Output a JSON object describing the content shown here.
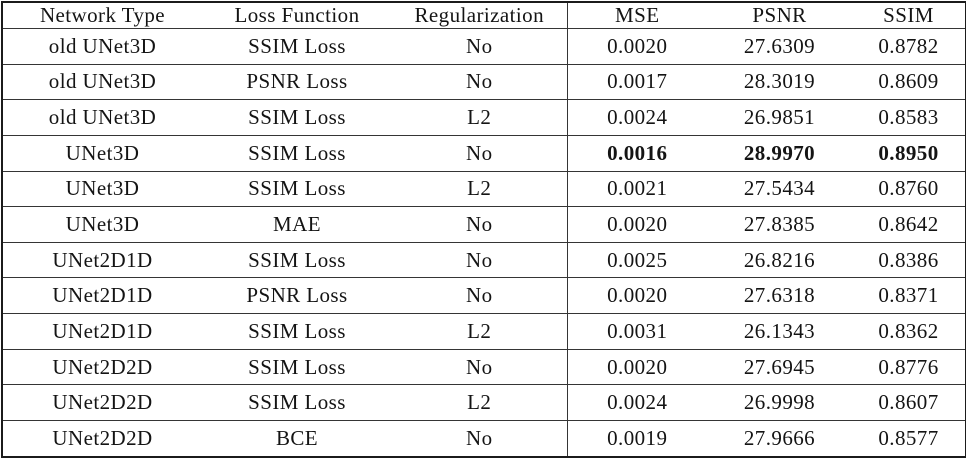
{
  "table": {
    "headers": [
      "Network Type",
      "Loss Function",
      "Regularization",
      "MSE",
      "PSNR",
      "SSIM"
    ],
    "rows": [
      {
        "cells": [
          "old UNet3D",
          "SSIM Loss",
          "No",
          "0.0020",
          "27.6309",
          "0.8782"
        ],
        "bold_metrics": false
      },
      {
        "cells": [
          "old UNet3D",
          "PSNR Loss",
          "No",
          "0.0017",
          "28.3019",
          "0.8609"
        ],
        "bold_metrics": false
      },
      {
        "cells": [
          "old UNet3D",
          "SSIM Loss",
          "L2",
          "0.0024",
          "26.9851",
          "0.8583"
        ],
        "bold_metrics": false
      },
      {
        "cells": [
          "UNet3D",
          "SSIM Loss",
          "No",
          "0.0016",
          "28.9970",
          "0.8950"
        ],
        "bold_metrics": true
      },
      {
        "cells": [
          "UNet3D",
          "SSIM Loss",
          "L2",
          "0.0021",
          "27.5434",
          "0.8760"
        ],
        "bold_metrics": false
      },
      {
        "cells": [
          "UNet3D",
          "MAE",
          "No",
          "0.0020",
          "27.8385",
          "0.8642"
        ],
        "bold_metrics": false
      },
      {
        "cells": [
          "UNet2D1D",
          "SSIM Loss",
          "No",
          "0.0025",
          "26.8216",
          "0.8386"
        ],
        "bold_metrics": false
      },
      {
        "cells": [
          "UNet2D1D",
          "PSNR Loss",
          "No",
          "0.0020",
          "27.6318",
          "0.8371"
        ],
        "bold_metrics": false
      },
      {
        "cells": [
          "UNet2D1D",
          "SSIM Loss",
          "L2",
          "0.0031",
          "26.1343",
          "0.8362"
        ],
        "bold_metrics": false
      },
      {
        "cells": [
          "UNet2D2D",
          "SSIM Loss",
          "No",
          "0.0020",
          "27.6945",
          "0.8776"
        ],
        "bold_metrics": false
      },
      {
        "cells": [
          "UNet2D2D",
          "SSIM Loss",
          "L2",
          "0.0024",
          "26.9998",
          "0.8607"
        ],
        "bold_metrics": false
      },
      {
        "cells": [
          "UNet2D2D",
          "BCE",
          "No",
          "0.0019",
          "27.9666",
          "0.8577"
        ],
        "bold_metrics": false
      }
    ]
  },
  "chart_data": {
    "type": "table",
    "title": "",
    "columns": [
      "Network Type",
      "Loss Function",
      "Regularization",
      "MSE",
      "PSNR",
      "SSIM"
    ],
    "rows": [
      [
        "old UNet3D",
        "SSIM Loss",
        "No",
        0.002,
        27.6309,
        0.8782
      ],
      [
        "old UNet3D",
        "PSNR Loss",
        "No",
        0.0017,
        28.3019,
        0.8609
      ],
      [
        "old UNet3D",
        "SSIM Loss",
        "L2",
        0.0024,
        26.9851,
        0.8583
      ],
      [
        "UNet3D",
        "SSIM Loss",
        "No",
        0.0016,
        28.997,
        0.895
      ],
      [
        "UNet3D",
        "SSIM Loss",
        "L2",
        0.0021,
        27.5434,
        0.876
      ],
      [
        "UNet3D",
        "MAE",
        "No",
        0.002,
        27.8385,
        0.8642
      ],
      [
        "UNet2D1D",
        "SSIM Loss",
        "No",
        0.0025,
        26.8216,
        0.8386
      ],
      [
        "UNet2D1D",
        "PSNR Loss",
        "No",
        0.002,
        27.6318,
        0.8371
      ],
      [
        "UNet2D1D",
        "SSIM Loss",
        "L2",
        0.0031,
        26.1343,
        0.8362
      ],
      [
        "UNet2D2D",
        "SSIM Loss",
        "No",
        0.002,
        27.6945,
        0.8776
      ],
      [
        "UNet2D2D",
        "SSIM Loss",
        "L2",
        0.0024,
        26.9998,
        0.8607
      ],
      [
        "UNet2D2D",
        "BCE",
        "No",
        0.0019,
        27.9666,
        0.8577
      ]
    ],
    "best_row_bold": 3,
    "colors": {
      "text": "#141414",
      "rule": "#353535",
      "background": "#ffffff"
    }
  }
}
